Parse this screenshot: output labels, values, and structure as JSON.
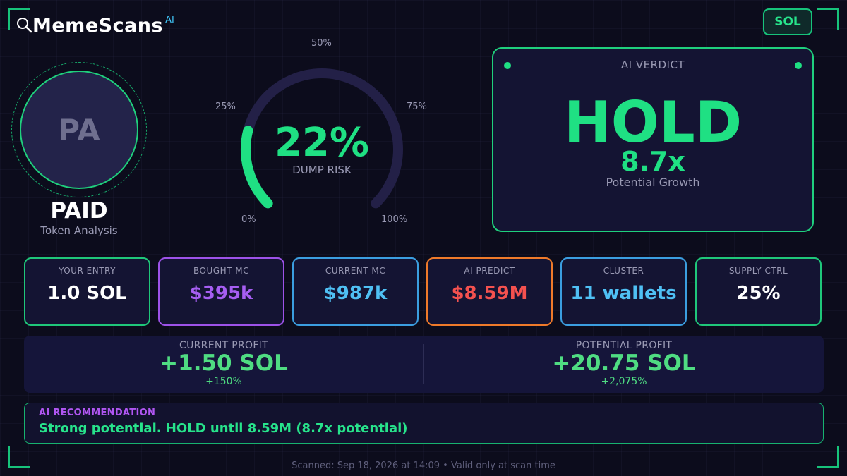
{
  "app": {
    "name": "MemeScans",
    "superscript": "AI",
    "chain_button": "SOL"
  },
  "token": {
    "initials": "PA",
    "symbol": "PAID",
    "subtitle": "Token Analysis"
  },
  "gauge": {
    "value_text": "22%",
    "value": 0.22,
    "caption": "DUMP RISK",
    "labels": {
      "p0": "0%",
      "p25": "25%",
      "p50": "50%",
      "p75": "75%",
      "p100": "100%"
    }
  },
  "verdict": {
    "label": "AI VERDICT",
    "decision": "HOLD",
    "multiplier": "8.7x",
    "sub": "Potential Growth"
  },
  "stats": [
    {
      "title": "YOUR ENTRY",
      "value": "1.0 SOL",
      "border": "#1fc77a",
      "color": "#ffffff"
    },
    {
      "title": "BOUGHT MC",
      "value": "$395k",
      "border": "#9d52e8",
      "color": "#a65ef2"
    },
    {
      "title": "CURRENT MC",
      "value": "$987k",
      "border": "#3b9ee0",
      "color": "#4fc0f4"
    },
    {
      "title": "AI PREDICT",
      "value": "$8.59M",
      "border": "#ef7a2a",
      "color": "#f4514f"
    },
    {
      "title": "CLUSTER",
      "value": "11 wallets",
      "border": "#3b9ee0",
      "color": "#4fc0f4"
    },
    {
      "title": "SUPPLY CTRL",
      "value": "25%",
      "border": "#1fc77a",
      "color": "#ffffff"
    }
  ],
  "profit": {
    "current": {
      "title": "CURRENT PROFIT",
      "value": "+1.50 SOL",
      "pct": "+150%"
    },
    "potential": {
      "title": "POTENTIAL PROFIT",
      "value": "+20.75 SOL",
      "pct": "+2,075%"
    }
  },
  "recommendation": {
    "title": "AI RECOMMENDATION",
    "text": "Strong potential. HOLD until 8.59M (8.7x potential)"
  },
  "footer": "Scanned: Sep 18, 2026 at 14:09  •  Valid only at scan time",
  "colors": {
    "accent_green": "#1fe083",
    "background": "#0c0c1c",
    "card": "#141433"
  }
}
